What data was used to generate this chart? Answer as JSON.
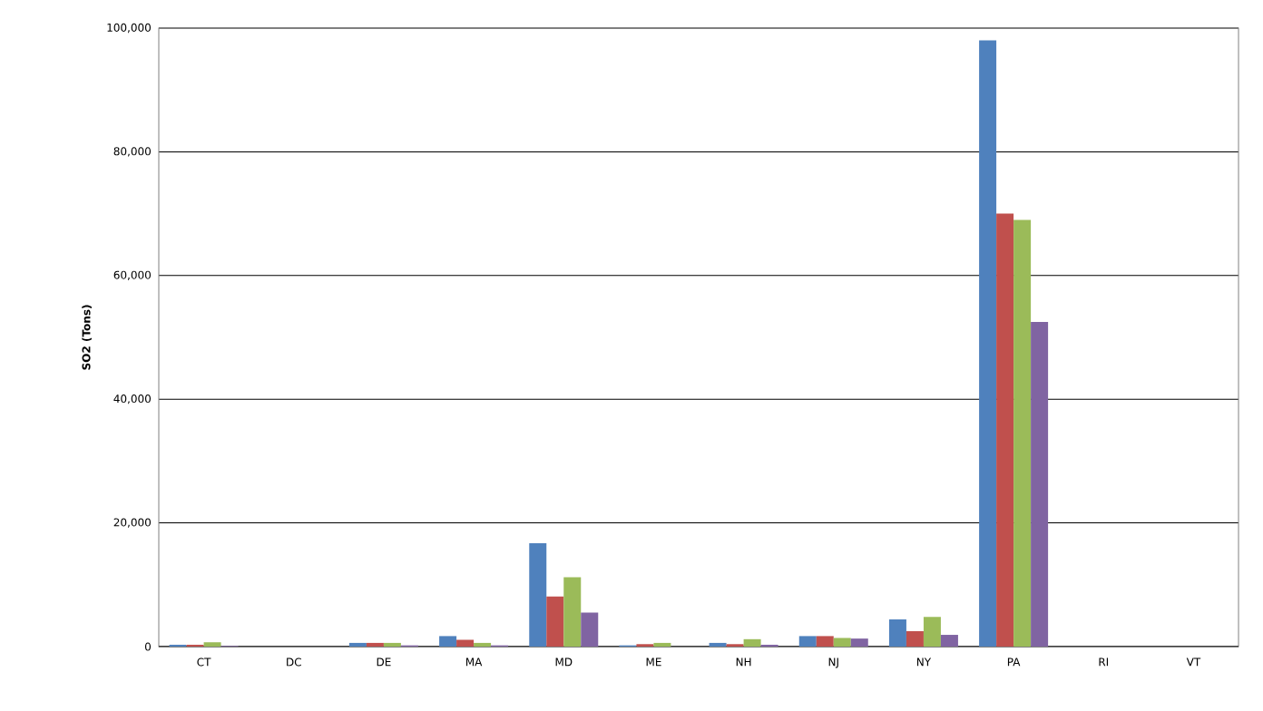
{
  "chart_data": {
    "type": "bar",
    "ylabel": "SO2 (Tons)",
    "categories": [
      "CT",
      "DC",
      "DE",
      "MA",
      "MD",
      "ME",
      "NH",
      "NJ",
      "NY",
      "PA",
      "RI",
      "VT"
    ],
    "series": [
      {
        "color": "#4f81bd",
        "values": [
          300,
          0,
          600,
          1700,
          16700,
          200,
          600,
          1700,
          4400,
          98000,
          0,
          0
        ]
      },
      {
        "color": "#c0504d",
        "values": [
          300,
          0,
          600,
          1100,
          8100,
          400,
          400,
          1700,
          2500,
          70000,
          0,
          0
        ]
      },
      {
        "color": "#9bbb59",
        "values": [
          700,
          0,
          600,
          600,
          11200,
          600,
          1200,
          1400,
          4800,
          69000,
          0,
          0
        ]
      },
      {
        "color": "#8064a2",
        "values": [
          100,
          0,
          200,
          200,
          5500,
          0,
          300,
          1300,
          1900,
          52500,
          0,
          0
        ]
      }
    ],
    "ylim": [
      0,
      100000
    ],
    "yticks": [
      0,
      {
        "value": 20000,
        "label": "20,000"
      },
      {
        "value": 40000,
        "label": "40,000"
      },
      {
        "value": 60000,
        "label": "60,000"
      },
      {
        "value": 80000,
        "label": "80,000"
      },
      {
        "value": 100000,
        "label": "100,000"
      }
    ],
    "grid": "y"
  }
}
